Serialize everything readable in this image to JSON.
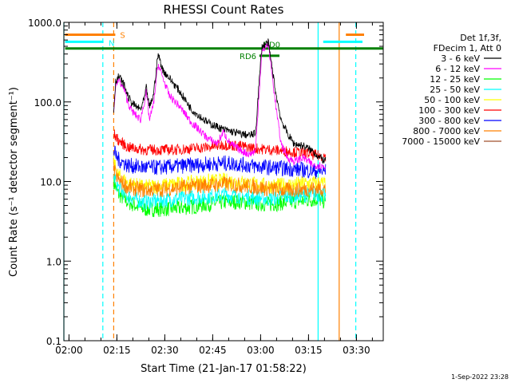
{
  "chart_data": {
    "type": "line",
    "title": "RHESSI Count Rates",
    "xlabel": "Start Time (21-Jan-17 01:58:22)",
    "ylabel": "Count Rate (s⁻¹ detector segment⁻¹)",
    "yscale": "log",
    "ylim": [
      0.1,
      1000
    ],
    "xlim_minutes": [
      0,
      100
    ],
    "x_ticks": [
      {
        "label": "02:00",
        "minute": 1.6
      },
      {
        "label": "02:15",
        "minute": 16.6
      },
      {
        "label": "02:30",
        "minute": 31.6
      },
      {
        "label": "02:45",
        "minute": 46.6
      },
      {
        "label": "03:00",
        "minute": 61.6
      },
      {
        "label": "03:15",
        "minute": 76.6
      },
      {
        "label": "03:30",
        "minute": 91.6
      }
    ],
    "y_ticks": [
      "0.1",
      "1.0",
      "10.0",
      "100.0",
      "1000.0"
    ],
    "legend_position": "top-right",
    "legend_header": [
      "Det 1f,3f,",
      "FDecim 1, Att 0"
    ],
    "series": [
      {
        "name": "3 - 6 keV",
        "color": "#000000",
        "x": [
          15.6,
          16.2,
          17.2,
          19.0,
          20.0,
          21.0,
          22.2,
          24.0,
          25.2,
          25.8,
          26.8,
          28.0,
          29.5,
          31.0,
          33.0,
          36.0,
          40.0,
          45.0,
          50.0,
          55.0,
          58.0,
          60.0,
          61.0,
          62.0,
          64.0,
          66.5,
          68.0,
          70.0,
          72.0,
          75.0,
          78.0,
          80.0,
          82.0
        ],
        "y": [
          80,
          180,
          210,
          160,
          120,
          100,
          90,
          80,
          110,
          150,
          85,
          120,
          400,
          250,
          200,
          140,
          80,
          55,
          45,
          40,
          38,
          40,
          150,
          500,
          560,
          120,
          60,
          40,
          30,
          28,
          24,
          20,
          18
        ]
      },
      {
        "name": "6 - 12 keV",
        "color": "#ff00ff",
        "x": [
          15.6,
          16.2,
          17.2,
          19.0,
          20.0,
          21.0,
          22.2,
          24.0,
          25.2,
          25.8,
          26.8,
          28.0,
          29.5,
          31.0,
          33.0,
          36.0,
          40.0,
          45.0,
          48.0,
          50.0,
          52.0,
          55.0,
          58.0,
          60.0,
          61.0,
          62.0,
          64.0,
          66.5,
          68.0,
          70.0,
          72.0,
          75.0,
          78.0,
          80.0,
          82.0
        ],
        "y": [
          70,
          160,
          190,
          140,
          100,
          80,
          70,
          60,
          100,
          130,
          60,
          90,
          300,
          200,
          120,
          90,
          55,
          35,
          30,
          42,
          30,
          25,
          22,
          24,
          110,
          420,
          550,
          80,
          30,
          20,
          18,
          20,
          16,
          16,
          15
        ]
      },
      {
        "name": "12 - 25 keV",
        "color": "#00ff00",
        "x": [
          15.6,
          17.0,
          20.0,
          25.0,
          30.0,
          35.0,
          40.0,
          45.0,
          50.0,
          55.0,
          60.0,
          65.0,
          70.0,
          75.0,
          80.0,
          82.0
        ],
        "y": [
          10,
          7,
          5.5,
          4.5,
          4.5,
          4.6,
          4.8,
          5.2,
          5.5,
          5.6,
          5.3,
          5.2,
          5.5,
          5.8,
          6,
          5.5
        ]
      },
      {
        "name": "25 - 50 keV",
        "color": "#00ffff",
        "x": [
          15.6,
          17.0,
          20.0,
          25.0,
          30.0,
          35.0,
          40.0,
          45.0,
          50.0,
          55.0,
          60.0,
          65.0,
          70.0,
          75.0,
          80.0,
          82.0
        ],
        "y": [
          12,
          8.5,
          6.5,
          5.5,
          5.8,
          6.0,
          6.3,
          6.5,
          6.8,
          6.6,
          6.2,
          6.1,
          6.5,
          6.8,
          7,
          6.5
        ]
      },
      {
        "name": "50 - 100 keV",
        "color": "#ffff00",
        "x": [
          15.6,
          17.0,
          20.0,
          25.0,
          30.0,
          35.0,
          40.0,
          45.0,
          50.0,
          55.0,
          60.0,
          65.0,
          70.0,
          75.0,
          80.0,
          82.0
        ],
        "y": [
          17,
          12,
          9.5,
          8.5,
          8.8,
          9.2,
          9.6,
          10,
          10.2,
          9.8,
          9.2,
          8.8,
          9.0,
          9.4,
          9.6,
          9.2
        ]
      },
      {
        "name": "100 - 300 keV",
        "color": "#ff0000",
        "x": [
          15.6,
          17.0,
          20.0,
          25.0,
          30.0,
          35.0,
          40.0,
          45.0,
          50.0,
          55.0,
          60.0,
          65.0,
          70.0,
          75.0,
          80.0,
          82.0
        ],
        "y": [
          40,
          33,
          27,
          25,
          25,
          25,
          26,
          27,
          29,
          28,
          26,
          25,
          24,
          23,
          21,
          21
        ]
      },
      {
        "name": "300 - 800 keV",
        "color": "#0000ff",
        "x": [
          15.6,
          17.0,
          20.0,
          25.0,
          30.0,
          35.0,
          40.0,
          45.0,
          50.0,
          55.0,
          60.0,
          65.0,
          70.0,
          75.0,
          80.0,
          82.0
        ],
        "y": [
          24,
          19,
          16,
          15,
          15,
          15.5,
          16,
          16.5,
          17,
          16.5,
          15.5,
          15,
          14.5,
          14,
          13.5,
          13.5
        ]
      },
      {
        "name": "800 - 7000 keV",
        "color": "#ff8000",
        "x": [
          15.6,
          17.0,
          20.0,
          25.0,
          30.0,
          35.0,
          40.0,
          45.0,
          50.0,
          55.0,
          60.0,
          65.0,
          70.0,
          75.0,
          80.0,
          82.0
        ],
        "y": [
          14,
          10.5,
          8.5,
          7.8,
          8.0,
          8.3,
          8.7,
          9.0,
          9.3,
          9.0,
          8.5,
          8.0,
          7.8,
          8.0,
          8.2,
          8.0
        ]
      },
      {
        "name": "7000 - 15000 keV",
        "color": "#a0522d",
        "x": [],
        "y": []
      }
    ],
    "annotations": {
      "state_bars": [
        {
          "label": "S",
          "color": "#ff8000",
          "y": 700
        },
        {
          "label": "N",
          "color": "#00ffff",
          "y": 570
        },
        {
          "label": "RD0",
          "color": "#008000",
          "y": 470
        },
        {
          "label": "RD6",
          "color": "#008000",
          "y": 380
        }
      ],
      "vertical_lines": [
        {
          "color": "#00ffff",
          "style": "solid",
          "minute": 0
        },
        {
          "color": "#00ffff",
          "style": "dashed",
          "minute": 12.2
        },
        {
          "color": "#ff8000",
          "style": "dashed",
          "minute": 15.6
        },
        {
          "color": "#00ffff",
          "style": "solid",
          "minute": 79.6
        },
        {
          "color": "#ff8000",
          "style": "solid",
          "minute": 86.2
        },
        {
          "color": "#00ffff",
          "style": "dashed",
          "minute": 91.4
        }
      ]
    }
  },
  "footer": {
    "timestamp": "1-Sep-2022 23:28"
  }
}
